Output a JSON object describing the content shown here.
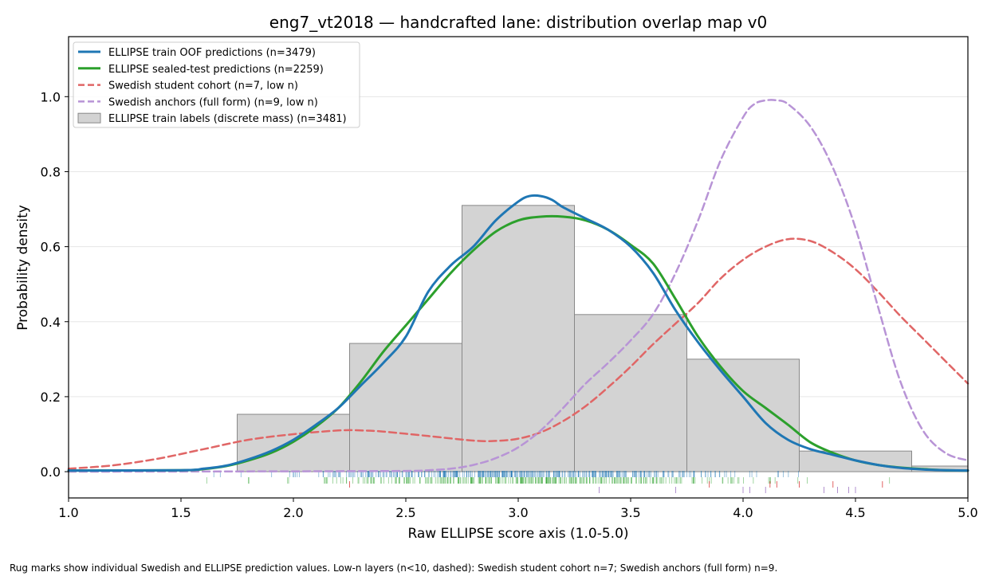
{
  "chart_data": {
    "type": "area",
    "title": "eng7_vt2018 — handcrafted lane: distribution overlap map v0",
    "xlabel": "Raw ELLIPSE score axis (1.0-5.0)",
    "ylabel": "Probability density",
    "xlim": [
      1.0,
      5.0
    ],
    "ylim": [
      -0.07,
      1.16
    ],
    "x_ticks": [
      "1.0",
      "1.5",
      "2.0",
      "2.5",
      "3.0",
      "3.5",
      "4.0",
      "4.5",
      "5.0"
    ],
    "y_ticks": [
      "0.0",
      "0.2",
      "0.4",
      "0.6",
      "0.8",
      "1.0"
    ],
    "grid": "horizontal",
    "legend_position": "upper-left",
    "footnote": "Rug marks show individual Swedish and ELLIPSE prediction values. Low-n layers (n<10, dashed): Swedish student cohort n=7; Swedish anchors (full form) n=9.",
    "histogram": {
      "name": "ELLIPSE train labels (discrete mass) (n=3481)",
      "color": "#d3d3d3",
      "bins": [
        {
          "x0": 1.75,
          "x1": 2.25,
          "value": 0.153
        },
        {
          "x0": 2.25,
          "x1": 2.75,
          "value": 0.342
        },
        {
          "x0": 2.75,
          "x1": 3.25,
          "value": 0.71
        },
        {
          "x0": 3.25,
          "x1": 3.75,
          "value": 0.419
        },
        {
          "x0": 3.75,
          "x1": 4.25,
          "value": 0.3
        },
        {
          "x0": 4.25,
          "x1": 4.75,
          "value": 0.055
        },
        {
          "x0": 4.75,
          "x1": 5.25,
          "value": 0.015
        }
      ]
    },
    "series": [
      {
        "name": "ELLIPSE train OOF predictions (n=3479)",
        "color": "#1f77b4",
        "dash": false,
        "x": [
          1.0,
          1.5,
          1.6,
          1.7,
          1.8,
          1.9,
          2.0,
          2.1,
          2.2,
          2.3,
          2.4,
          2.5,
          2.6,
          2.7,
          2.8,
          2.9,
          3.0,
          3.05,
          3.1,
          3.15,
          3.2,
          3.3,
          3.4,
          3.5,
          3.6,
          3.7,
          3.8,
          3.9,
          4.0,
          4.1,
          4.2,
          4.3,
          4.4,
          4.5,
          4.6,
          4.7,
          4.8,
          4.9,
          5.0
        ],
        "y": [
          0.003,
          0.004,
          0.008,
          0.016,
          0.033,
          0.055,
          0.085,
          0.125,
          0.17,
          0.23,
          0.29,
          0.36,
          0.48,
          0.55,
          0.6,
          0.67,
          0.72,
          0.735,
          0.735,
          0.725,
          0.705,
          0.675,
          0.645,
          0.6,
          0.53,
          0.43,
          0.345,
          0.27,
          0.2,
          0.13,
          0.085,
          0.06,
          0.045,
          0.03,
          0.018,
          0.01,
          0.006,
          0.004,
          0.003
        ]
      },
      {
        "name": "ELLIPSE sealed-test predictions (n=2259)",
        "color": "#2ca02c",
        "dash": false,
        "x": [
          1.0,
          1.5,
          1.6,
          1.7,
          1.8,
          1.9,
          2.0,
          2.1,
          2.2,
          2.3,
          2.4,
          2.5,
          2.6,
          2.7,
          2.8,
          2.9,
          3.0,
          3.1,
          3.2,
          3.3,
          3.4,
          3.5,
          3.6,
          3.7,
          3.8,
          3.9,
          4.0,
          4.1,
          4.2,
          4.3,
          4.4,
          4.5,
          4.6,
          4.7,
          4.8,
          4.9,
          5.0
        ],
        "y": [
          0.003,
          0.004,
          0.007,
          0.015,
          0.03,
          0.05,
          0.08,
          0.12,
          0.17,
          0.24,
          0.32,
          0.39,
          0.46,
          0.53,
          0.59,
          0.64,
          0.67,
          0.68,
          0.68,
          0.67,
          0.645,
          0.605,
          0.555,
          0.46,
          0.36,
          0.28,
          0.215,
          0.17,
          0.125,
          0.078,
          0.05,
          0.03,
          0.018,
          0.011,
          0.007,
          0.004,
          0.003
        ]
      },
      {
        "name": "Swedish student cohort (n=7, low n)",
        "color": "#e06666",
        "dash": true,
        "x": [
          1.0,
          1.2,
          1.4,
          1.6,
          1.8,
          2.0,
          2.2,
          2.3,
          2.4,
          2.6,
          2.8,
          2.9,
          3.0,
          3.1,
          3.2,
          3.3,
          3.4,
          3.5,
          3.6,
          3.7,
          3.8,
          3.9,
          4.0,
          4.1,
          4.2,
          4.3,
          4.4,
          4.5,
          4.6,
          4.7,
          4.8,
          4.9,
          5.0
        ],
        "y": [
          0.008,
          0.017,
          0.035,
          0.06,
          0.085,
          0.1,
          0.11,
          0.11,
          0.107,
          0.095,
          0.083,
          0.082,
          0.088,
          0.105,
          0.135,
          0.175,
          0.225,
          0.28,
          0.34,
          0.395,
          0.45,
          0.515,
          0.565,
          0.6,
          0.62,
          0.615,
          0.585,
          0.54,
          0.48,
          0.415,
          0.355,
          0.295,
          0.235
        ]
      },
      {
        "name": "Swedish anchors (full form) (n=9, low n)",
        "color": "#b894d6",
        "dash": true,
        "x": [
          1.0,
          2.0,
          2.5,
          2.6,
          2.7,
          2.8,
          2.9,
          3.0,
          3.1,
          3.2,
          3.3,
          3.4,
          3.5,
          3.6,
          3.7,
          3.8,
          3.9,
          4.0,
          4.05,
          4.1,
          4.15,
          4.2,
          4.3,
          4.4,
          4.5,
          4.6,
          4.7,
          4.8,
          4.9,
          5.0
        ],
        "y": [
          0.0,
          0.001,
          0.002,
          0.004,
          0.008,
          0.018,
          0.036,
          0.065,
          0.11,
          0.17,
          0.235,
          0.29,
          0.35,
          0.42,
          0.53,
          0.67,
          0.83,
          0.945,
          0.98,
          0.99,
          0.99,
          0.98,
          0.92,
          0.81,
          0.65,
          0.44,
          0.24,
          0.11,
          0.05,
          0.03
        ]
      }
    ],
    "rugs": [
      {
        "name": "ELLIPSE train OOF predictions rug",
        "color": "#1f77b4",
        "row": 0,
        "range": [
          1.4,
          4.7
        ],
        "count": 420
      },
      {
        "name": "ELLIPSE sealed-test predictions rug",
        "color": "#2ca02c",
        "row": 1,
        "range": [
          1.3,
          4.8
        ],
        "count": 330
      },
      {
        "name": "Swedish student cohort rug",
        "color": "#d62728",
        "row": 2,
        "values": [
          2.25,
          3.85,
          4.12,
          4.15,
          4.25,
          4.4,
          4.62
        ]
      },
      {
        "name": "Swedish anchors rug",
        "color": "#9467bd",
        "row": 3,
        "values": [
          3.36,
          3.7,
          4.0,
          4.03,
          4.1,
          4.36,
          4.42,
          4.47,
          4.5
        ]
      }
    ]
  }
}
